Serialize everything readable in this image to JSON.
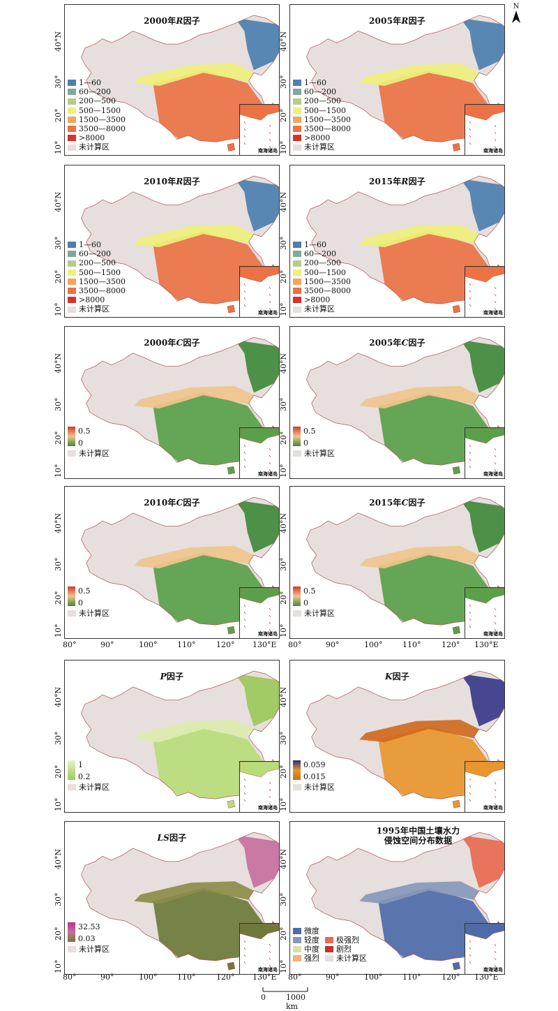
{
  "north_arrow": {
    "label": "N"
  },
  "latitude_ticks": [
    "10°",
    "20°",
    "30°",
    "40°N"
  ],
  "longitude_ticks": [
    "80°",
    "90°",
    "100°",
    "110°",
    "120°",
    "130°E"
  ],
  "inset_label": "南海诸岛",
  "scale_bar": {
    "start": "0",
    "end": "1000 km"
  },
  "r_legend": [
    {
      "label": "1—60",
      "color": "#4c7fb0"
    },
    {
      "label": "60—200",
      "color": "#7fa9a0"
    },
    {
      "label": "200—500",
      "color": "#b8cc8a"
    },
    {
      "label": "500—1500",
      "color": "#eef07a"
    },
    {
      "label": "1500—3500",
      "color": "#f3a55a"
    },
    {
      "label": "3500—8000",
      "color": "#ec7244"
    },
    {
      "label": ">8000",
      "color": "#d8322a"
    },
    {
      "label": "未计算区",
      "color": "#e6dfdd"
    }
  ],
  "c_legend": {
    "max": "0.5",
    "min": "0",
    "no_data": "未计算区"
  },
  "p_legend": {
    "max": "1",
    "min": "0.2",
    "no_data": "未计算区"
  },
  "k_legend": {
    "max": "0.059",
    "min": "0.015",
    "no_data": "未计算区"
  },
  "ls_legend": {
    "max": "32.53",
    "min": "0.03",
    "no_data": "未计算区"
  },
  "erosion_legend": [
    {
      "label": "微度",
      "color": "#4e6aa8"
    },
    {
      "label": "轻度",
      "color": "#8798b8"
    },
    {
      "label": "中度",
      "color": "#d7dfb0"
    },
    {
      "label": "强烈",
      "color": "#f2b07a"
    },
    {
      "label": "极强烈",
      "color": "#e86a52"
    },
    {
      "label": "剧烈",
      "color": "#c8302a"
    },
    {
      "label": "未计算区",
      "color": "#e6dfdd"
    }
  ],
  "panels": [
    {
      "id": "r2000",
      "title_pre": "2000年",
      "title_it": "R",
      "title_post": "因子",
      "fill": "#ec7244",
      "fill2": "#eef07a",
      "fill3": "#4c7fb0"
    },
    {
      "id": "r2005",
      "title_pre": "2005年",
      "title_it": "R",
      "title_post": "因子",
      "fill": "#ec7244",
      "fill2": "#eef07a",
      "fill3": "#4c7fb0"
    },
    {
      "id": "r2010",
      "title_pre": "2010年",
      "title_it": "R",
      "title_post": "因子",
      "fill": "#ec7244",
      "fill2": "#eef07a",
      "fill3": "#4c7fb0"
    },
    {
      "id": "r2015",
      "title_pre": "2015年",
      "title_it": "R",
      "title_post": "因子",
      "fill": "#ec7244",
      "fill2": "#eef07a",
      "fill3": "#4c7fb0"
    },
    {
      "id": "c2000",
      "title_pre": "2000年",
      "title_it": "C",
      "title_post": "因子",
      "fill": "#5aa04a",
      "fill2": "#f0c48c",
      "fill3": "#3f8a3a"
    },
    {
      "id": "c2005",
      "title_pre": "2005年",
      "title_it": "C",
      "title_post": "因子",
      "fill": "#5aa04a",
      "fill2": "#f0c48c",
      "fill3": "#3f8a3a"
    },
    {
      "id": "c2010",
      "title_pre": "2010年",
      "title_it": "C",
      "title_post": "因子",
      "fill": "#5aa04a",
      "fill2": "#f0c48c",
      "fill3": "#3f8a3a"
    },
    {
      "id": "c2015",
      "title_pre": "2015年",
      "title_it": "C",
      "title_post": "因子",
      "fill": "#5aa04a",
      "fill2": "#f0c48c",
      "fill3": "#3f8a3a"
    },
    {
      "id": "p",
      "title_pre": "",
      "title_it": "P",
      "title_post": "因子",
      "fill": "#b9dc7a",
      "fill2": "#dcecae",
      "fill3": "#9cc85a"
    },
    {
      "id": "k",
      "title_pre": "",
      "title_it": "K",
      "title_post": "因子",
      "fill": "#e8962e",
      "fill2": "#d06a1e",
      "fill3": "#3a3a8a"
    },
    {
      "id": "ls",
      "title_pre": "",
      "title_it": "LS",
      "title_post": "因子",
      "fill": "#6e7a3a",
      "fill2": "#8c8c4a",
      "fill3": "#c870a0"
    },
    {
      "id": "erosion",
      "title_line1": "1995年中国土壤水力",
      "title_line2": "侵蚀空间分布数据",
      "fill": "#4e6aa8",
      "fill2": "#8798b8",
      "fill3": "#e86a52"
    }
  ]
}
